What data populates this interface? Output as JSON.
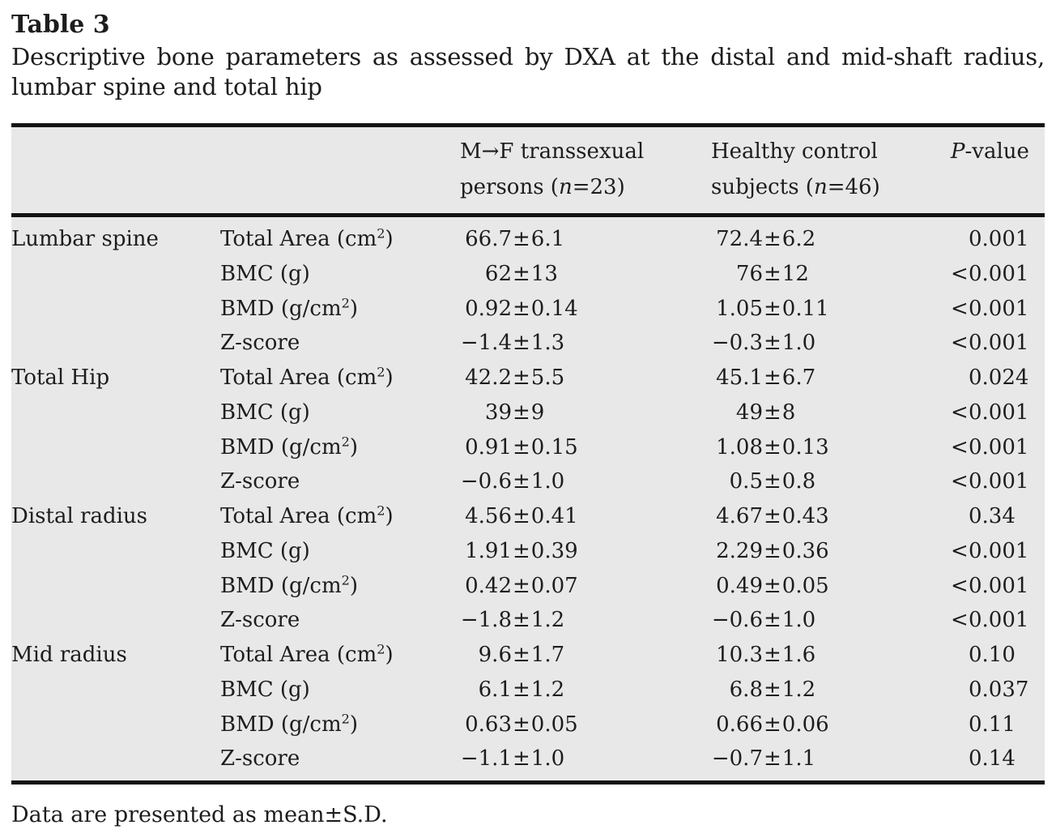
{
  "title": "Table 3",
  "caption_line1": "Descriptive bone parameters as assessed by DXA at the distal and mid-shaft radius,",
  "caption_line2": "lumbar spine and total hip",
  "pm": "±",
  "header": {
    "group_col": "",
    "param_col": "",
    "mf": {
      "line1": "M→F transsexual",
      "line2_pre": "persons (",
      "n": "n",
      "line2_post": "=23)"
    },
    "control": {
      "line1": "Healthy control",
      "line2_pre": "subjects (",
      "n": "n",
      "line2_post": "=46)"
    },
    "pvalue": {
      "italic": "P",
      "rest": "-value"
    }
  },
  "rows": [
    {
      "group": "Lumbar spine",
      "param_pre": "Total Area (cm",
      "param_sup": "2",
      "param_post": ")",
      "mf_mean": "66.7",
      "mf_sd": "6.1",
      "hc_mean": "72.4",
      "hc_sd": "6.2",
      "p_prefix": "",
      "p_value": "0.001"
    },
    {
      "group": "",
      "param_pre": "BMC (g)",
      "param_sup": "",
      "param_post": "",
      "mf_mean": "62",
      "mf_sd": "13",
      "hc_mean": "76",
      "hc_sd": "12",
      "p_prefix": "<",
      "p_value": "0.001"
    },
    {
      "group": "",
      "param_pre": "BMD (g/cm",
      "param_sup": "2",
      "param_post": ")",
      "mf_mean": "0.92",
      "mf_sd": "0.14",
      "hc_mean": "1.05",
      "hc_sd": "0.11",
      "p_prefix": "<",
      "p_value": "0.001"
    },
    {
      "group": "",
      "param_pre": "Z-score",
      "param_sup": "",
      "param_post": "",
      "mf_mean": "−1.4",
      "mf_sd": "1.3",
      "hc_mean": "−0.3",
      "hc_sd": "1.0",
      "p_prefix": "<",
      "p_value": "0.001"
    },
    {
      "group": "Total Hip",
      "param_pre": "Total Area (cm",
      "param_sup": "2",
      "param_post": ")",
      "mf_mean": "42.2",
      "mf_sd": "5.5",
      "hc_mean": "45.1",
      "hc_sd": "6.7",
      "p_prefix": "",
      "p_value": "0.024"
    },
    {
      "group": "",
      "param_pre": "BMC (g)",
      "param_sup": "",
      "param_post": "",
      "mf_mean": "39",
      "mf_sd": "9",
      "hc_mean": "49",
      "hc_sd": "8",
      "p_prefix": "<",
      "p_value": "0.001"
    },
    {
      "group": "",
      "param_pre": "BMD (g/cm",
      "param_sup": "2",
      "param_post": ")",
      "mf_mean": "0.91",
      "mf_sd": "0.15",
      "hc_mean": "1.08",
      "hc_sd": "0.13",
      "p_prefix": "<",
      "p_value": "0.001"
    },
    {
      "group": "",
      "param_pre": "Z-score",
      "param_sup": "",
      "param_post": "",
      "mf_mean": "−0.6",
      "mf_sd": "1.0",
      "hc_mean": "0.5",
      "hc_sd": "0.8",
      "p_prefix": "<",
      "p_value": "0.001"
    },
    {
      "group": "Distal radius",
      "param_pre": "Total Area (cm",
      "param_sup": "2",
      "param_post": ")",
      "mf_mean": "4.56",
      "mf_sd": "0.41",
      "hc_mean": "4.67",
      "hc_sd": "0.43",
      "p_prefix": "",
      "p_value": "0.34"
    },
    {
      "group": "",
      "param_pre": "BMC (g)",
      "param_sup": "",
      "param_post": "",
      "mf_mean": "1.91",
      "mf_sd": "0.39",
      "hc_mean": "2.29",
      "hc_sd": "0.36",
      "p_prefix": "<",
      "p_value": "0.001"
    },
    {
      "group": "",
      "param_pre": "BMD (g/cm",
      "param_sup": "2",
      "param_post": ")",
      "mf_mean": "0.42",
      "mf_sd": "0.07",
      "hc_mean": "0.49",
      "hc_sd": "0.05",
      "p_prefix": "<",
      "p_value": "0.001"
    },
    {
      "group": "",
      "param_pre": "Z-score",
      "param_sup": "",
      "param_post": "",
      "mf_mean": "−1.8",
      "mf_sd": "1.2",
      "hc_mean": "−0.6",
      "hc_sd": "1.0",
      "p_prefix": "<",
      "p_value": "0.001"
    },
    {
      "group": "Mid radius",
      "param_pre": "Total Area (cm",
      "param_sup": "2",
      "param_post": ")",
      "mf_mean": "9.6",
      "mf_sd": "1.7",
      "hc_mean": "10.3",
      "hc_sd": "1.6",
      "p_prefix": "",
      "p_value": "0.10"
    },
    {
      "group": "",
      "param_pre": "BMC (g)",
      "param_sup": "",
      "param_post": "",
      "mf_mean": "6.1",
      "mf_sd": "1.2",
      "hc_mean": "6.8",
      "hc_sd": "1.2",
      "p_prefix": "",
      "p_value": "0.037"
    },
    {
      "group": "",
      "param_pre": "BMD (g/cm",
      "param_sup": "2",
      "param_post": ")",
      "mf_mean": "0.63",
      "mf_sd": "0.05",
      "hc_mean": "0.66",
      "hc_sd": "0.06",
      "p_prefix": "",
      "p_value": "0.11"
    },
    {
      "group": "",
      "param_pre": "Z-score",
      "param_sup": "",
      "param_post": "",
      "mf_mean": "−1.1",
      "mf_sd": "1.0",
      "hc_mean": "−0.7",
      "hc_sd": "1.1",
      "p_prefix": "",
      "p_value": "0.14"
    }
  ],
  "footnote": "Data are presented as mean±S.D.",
  "colors": {
    "table_bg": "#e8e8e8",
    "text": "#1d1d1d",
    "rule": "#141414"
  }
}
